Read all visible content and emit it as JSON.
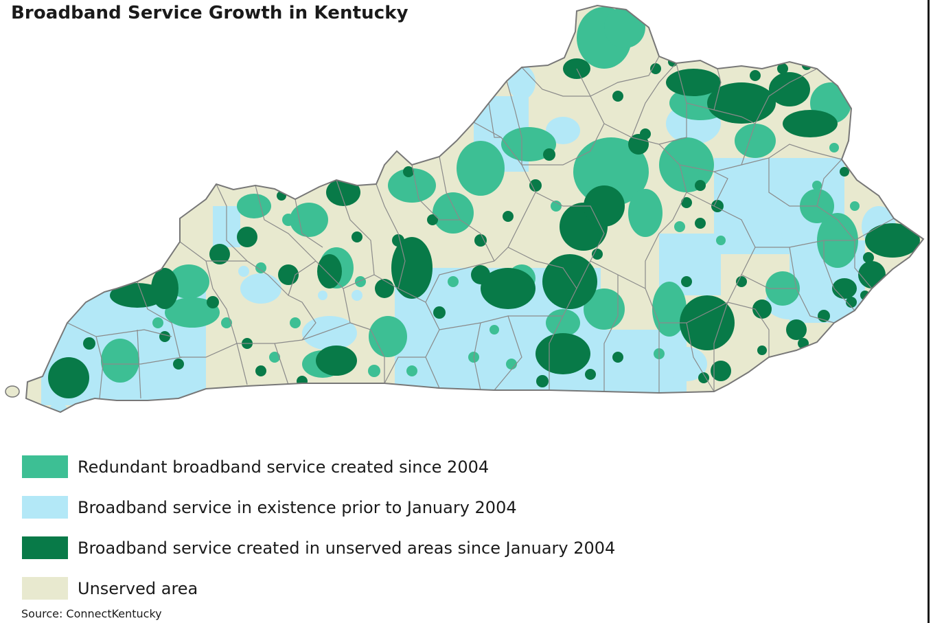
{
  "title": "Broadband Service Growth in Kentucky",
  "colors": {
    "redundant": "#3dbf94",
    "prior": "#b3e8f7",
    "new_unserved": "#087a48",
    "unserved": "#e8e9cf",
    "county_border": "#8a8a8a",
    "state_border": "#777777"
  },
  "legend": {
    "items": [
      {
        "key": "redundant",
        "label": "Redundant broadband service created since 2004"
      },
      {
        "key": "prior",
        "label": "Broadband service in existence prior to January 2004"
      },
      {
        "key": "new_unserved",
        "label": "Broadband service created in unserved areas since January 2004"
      },
      {
        "key": "unserved",
        "label": "Unserved area"
      }
    ]
  },
  "source": "Source: ConnectKentucky"
}
